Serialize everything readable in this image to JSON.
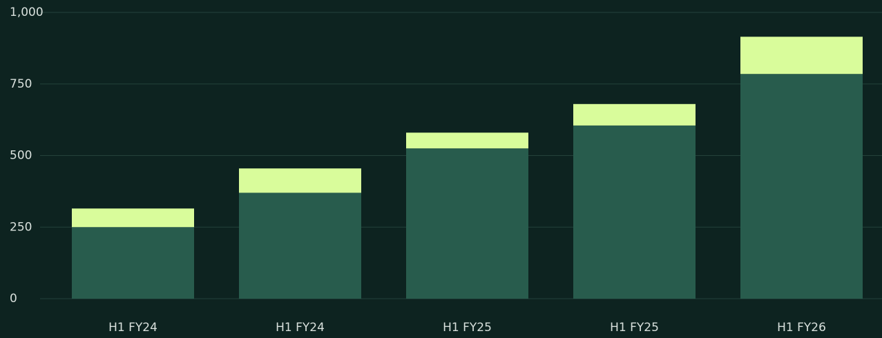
{
  "chart_data": {
    "type": "stacked_bar",
    "categories": [
      "H1 FY24",
      "H1 FY24",
      "H1 FY25",
      "H1 FY25",
      "H1 FY26"
    ],
    "series": [
      {
        "color": "#285c4d",
        "values": [
          250,
          370,
          525,
          605,
          785
        ]
      },
      {
        "color": "#d9fc9b",
        "values": [
          65,
          85,
          55,
          75,
          130
        ]
      }
    ],
    "ylim": [
      0,
      1000
    ],
    "yticks": [
      0,
      250,
      500,
      750,
      {
        "value": 1000,
        "label": "1,000"
      }
    ],
    "grid": true
  }
}
